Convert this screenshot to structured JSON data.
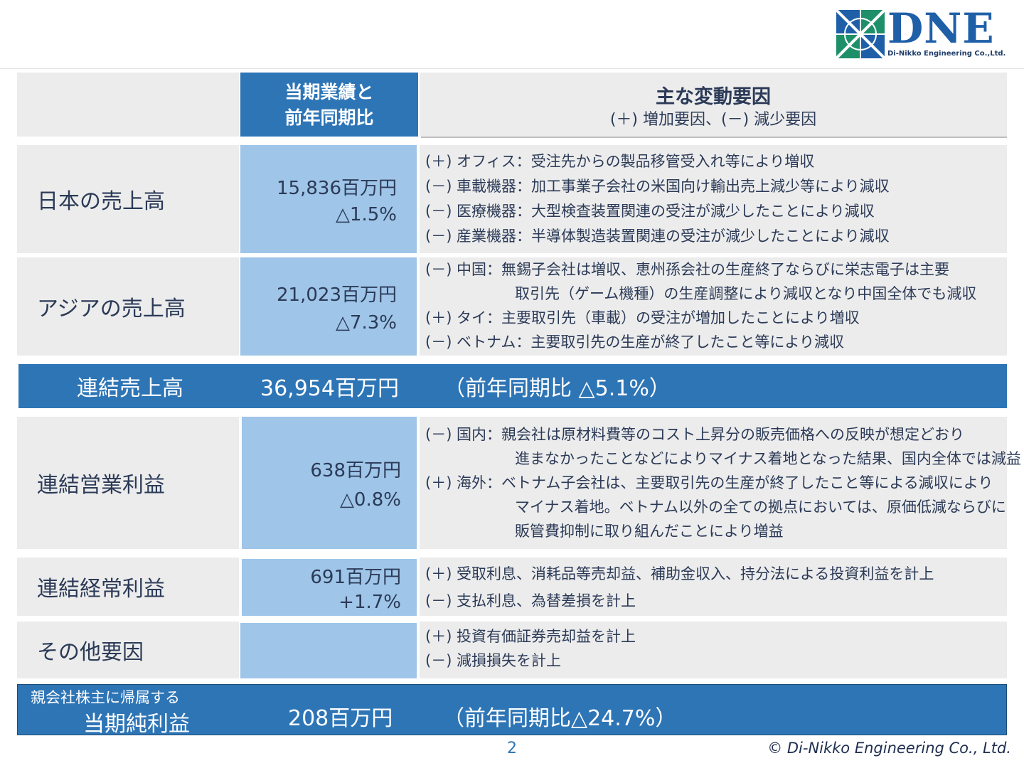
{
  "logo": {
    "text": "DNE",
    "subtitle": "Di-Nikko Engineering Co.,Ltd.",
    "colors": {
      "blue": "#1f5fa8",
      "green": "#1f8f6a"
    }
  },
  "header": {
    "col2": "当期業績と\n前年同期比",
    "col3_title": "主な変動要因",
    "col3_sub": "(＋) 増加要因、(－) 減少要因"
  },
  "rows": [
    {
      "label": "日本の売上高",
      "value": "15,836百万円",
      "change": "△1.5%",
      "notes": [
        "(＋) オフィス：受注先からの製品移管受入れ等により増収",
        "(－) 車載機器：加工事業子会社の米国向け輸出売上減少等により減収",
        "(－) 医療機器：大型検査装置関連の受注が減少したことにより減収",
        "(－) 産業機器：半導体製造装置関連の受注が減少したことにより減収"
      ]
    },
    {
      "label": "アジアの売上高",
      "value": "21,023百万円",
      "change": "△7.3%",
      "notes": [
        "(－) 中国：無錫子会社は増収、恵州孫会社の生産終了ならびに栄志電子は主要",
        "取引先（ゲーム機種）の生産調整により減収となり中国全体でも減収",
        "(＋) タイ：主要取引先（車載）の受注が増加したことにより増収",
        "(－) ベトナム：主要取引先の生産が終了したこと等により減収"
      ]
    },
    {
      "label": "連結営業利益",
      "value": "638百万円",
      "change": "△0.8%",
      "notes": [
        "(－) 国内：親会社は原材料費等のコスト上昇分の販売価格への反映が想定どおり",
        "進まなかったことなどによりマイナス着地となった結果、国内全体では減益",
        "(＋) 海外：ベトナム子会社は、主要取引先の生産が終了したこと等による減収により",
        "マイナス着地。ベトナム以外の全ての拠点においては、原価低減ならびに",
        "販管費抑制に取り組んだことにより増益"
      ]
    },
    {
      "label": "連結経常利益",
      "value": "691百万円",
      "change": "+1.7%",
      "notes": [
        "(＋) 受取利息、消耗品等売却益、補助金収入、持分法による投資利益を計上",
        "(－) 支払利息、為替差損を計上"
      ]
    },
    {
      "label": "その他要因",
      "value": "",
      "change": "",
      "notes": [
        "(＋) 投資有価証券売却益を計上",
        "(－) 減損損失を計上"
      ]
    }
  ],
  "sales_band": {
    "label": "連結売上高",
    "value": "36,954百万円",
    "compare": "（前年同期比 △5.1%）"
  },
  "net_band": {
    "label_small": "親会社株主に帰属する",
    "label": "当期純利益",
    "value": "208百万円",
    "compare": "（前年同期比△24.7%）"
  },
  "footer": {
    "page": "2",
    "copyright": "© Di-Nikko Engineering Co., Ltd."
  }
}
